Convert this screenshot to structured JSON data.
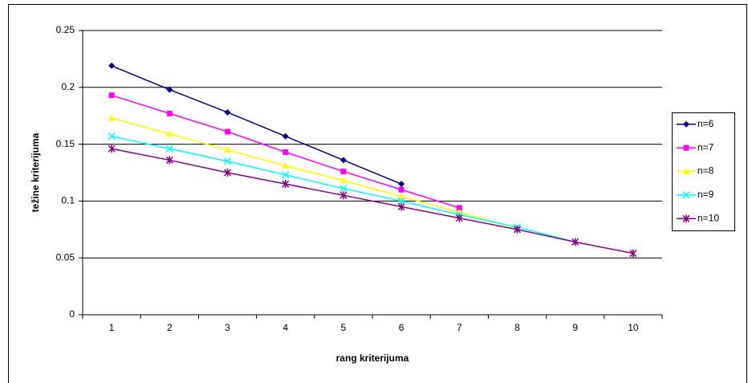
{
  "chart_data": {
    "type": "line",
    "xlabel": "rang kriterijuma",
    "ylabel": "težine kriterijuma",
    "categories": [
      "1",
      "2",
      "3",
      "4",
      "5",
      "6",
      "7",
      "8",
      "9",
      "10"
    ],
    "series": [
      {
        "name": "n=6",
        "color": "#000080",
        "marker": "diamond",
        "values": [
          0.219,
          0.198,
          0.178,
          0.157,
          0.136,
          0.115,
          null,
          null,
          null,
          null
        ]
      },
      {
        "name": "n=7",
        "color": "#ff00ff",
        "marker": "square",
        "values": [
          0.193,
          0.177,
          0.161,
          0.143,
          0.126,
          0.11,
          0.094,
          null,
          null,
          null
        ]
      },
      {
        "name": "n=8",
        "color": "#ffff00",
        "marker": "triangle",
        "values": [
          0.173,
          0.159,
          0.145,
          0.131,
          0.118,
          0.104,
          0.09,
          0.076,
          null,
          null
        ]
      },
      {
        "name": "n=9",
        "color": "#00ffff",
        "marker": "x",
        "values": [
          0.157,
          0.146,
          0.135,
          0.123,
          0.111,
          0.1,
          0.088,
          0.077,
          0.064,
          null
        ]
      },
      {
        "name": "n=10",
        "color": "#800080",
        "marker": "star",
        "values": [
          0.146,
          0.136,
          0.125,
          0.115,
          0.105,
          0.095,
          0.085,
          0.075,
          0.064,
          0.054
        ]
      }
    ],
    "ylim": [
      0,
      0.25
    ],
    "yticks": [
      0,
      0.05,
      0.1,
      0.15,
      0.2,
      0.25
    ],
    "grid": true,
    "legend": "right"
  }
}
